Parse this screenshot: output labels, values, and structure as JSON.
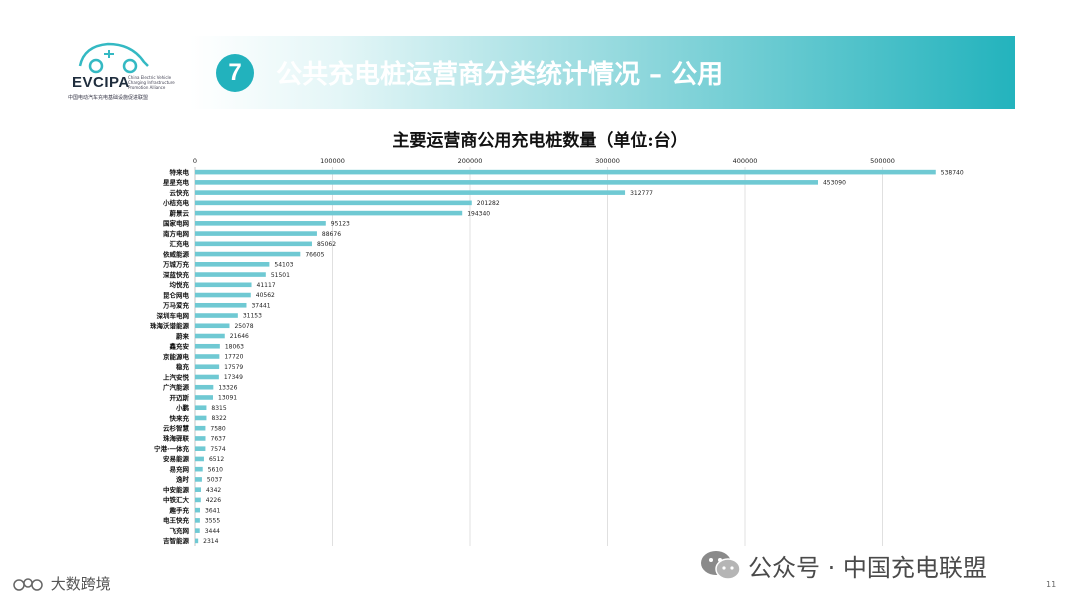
{
  "logo": {
    "brand": "EVCIPA",
    "brand_en": "China Electric Vehicle Charging Infrastructure Promotion Alliance",
    "brand_cn": "中国电动汽车充电基础设施促进联盟",
    "icon": "car-plug-icon"
  },
  "header": {
    "number": "7",
    "title": "公共充电桩运营商分类统计情况 – 公用"
  },
  "chart_data": {
    "type": "bar",
    "orientation": "horizontal",
    "title": "主要运营商公用充电桩数量（单位:台）",
    "xlim": [
      0,
      560000
    ],
    "xticks": [
      "0",
      "100000",
      "200000",
      "300000",
      "400000",
      "500000"
    ],
    "xtick_values": [
      0,
      100000,
      200000,
      300000,
      400000,
      500000
    ],
    "grid": "vertical",
    "color": "#6fc9d3",
    "categories": [
      "特来电",
      "星星充电",
      "云快充",
      "小桔充电",
      "蔚景云",
      "国家电网",
      "南方电网",
      "汇充电",
      "依威能源",
      "万城万充",
      "深蓝快充",
      "均悦充",
      "昆仑网电",
      "万马爱充",
      "深圳车电网",
      "珠海沃谱能源",
      "蔚来",
      "鑫充安",
      "京能源电",
      "稳充",
      "上汽安悦",
      "广汽能源",
      "开迈斯",
      "小鹏",
      "快来充",
      "云杉智慧",
      "珠海驿联",
      "宁港·一体充",
      "安易能源",
      "易充网",
      "逸时",
      "中安能源",
      "中铁汇大",
      "趣手充",
      "电王快充",
      "飞充网",
      "吉智能源"
    ],
    "values": [
      538740,
      453090,
      312777,
      201282,
      194340,
      95123,
      88676,
      85062,
      76605,
      54103,
      51501,
      41117,
      40562,
      37441,
      31153,
      25078,
      21646,
      18063,
      17720,
      17579,
      17349,
      13326,
      13091,
      8315,
      8322,
      7580,
      7637,
      7574,
      6512,
      5610,
      5037,
      4342,
      4226,
      3641,
      3555,
      3444,
      2314
    ],
    "value_labels": [
      "538740",
      "453090",
      "312777",
      "201282",
      "194340",
      "95123",
      "88676",
      "85062",
      "76605",
      "54103",
      "51501",
      "41117",
      "40562",
      "37441",
      "31153",
      "25078",
      "21646",
      "18063",
      "17720",
      "17579",
      "17349",
      "13326",
      "13091",
      "8315",
      "8322",
      "7580",
      "7637",
      "7574",
      "6512",
      "5610",
      "5037",
      "4342",
      "4226",
      "3641",
      "3555",
      "3444",
      "2314"
    ]
  },
  "footer": {
    "wechat_icon": "wechat-icon",
    "account": "公众号 · 中国充电联盟",
    "left_brand_icon": "dashu-logo-icon",
    "left_brand": "大数跨境",
    "page": "11"
  }
}
